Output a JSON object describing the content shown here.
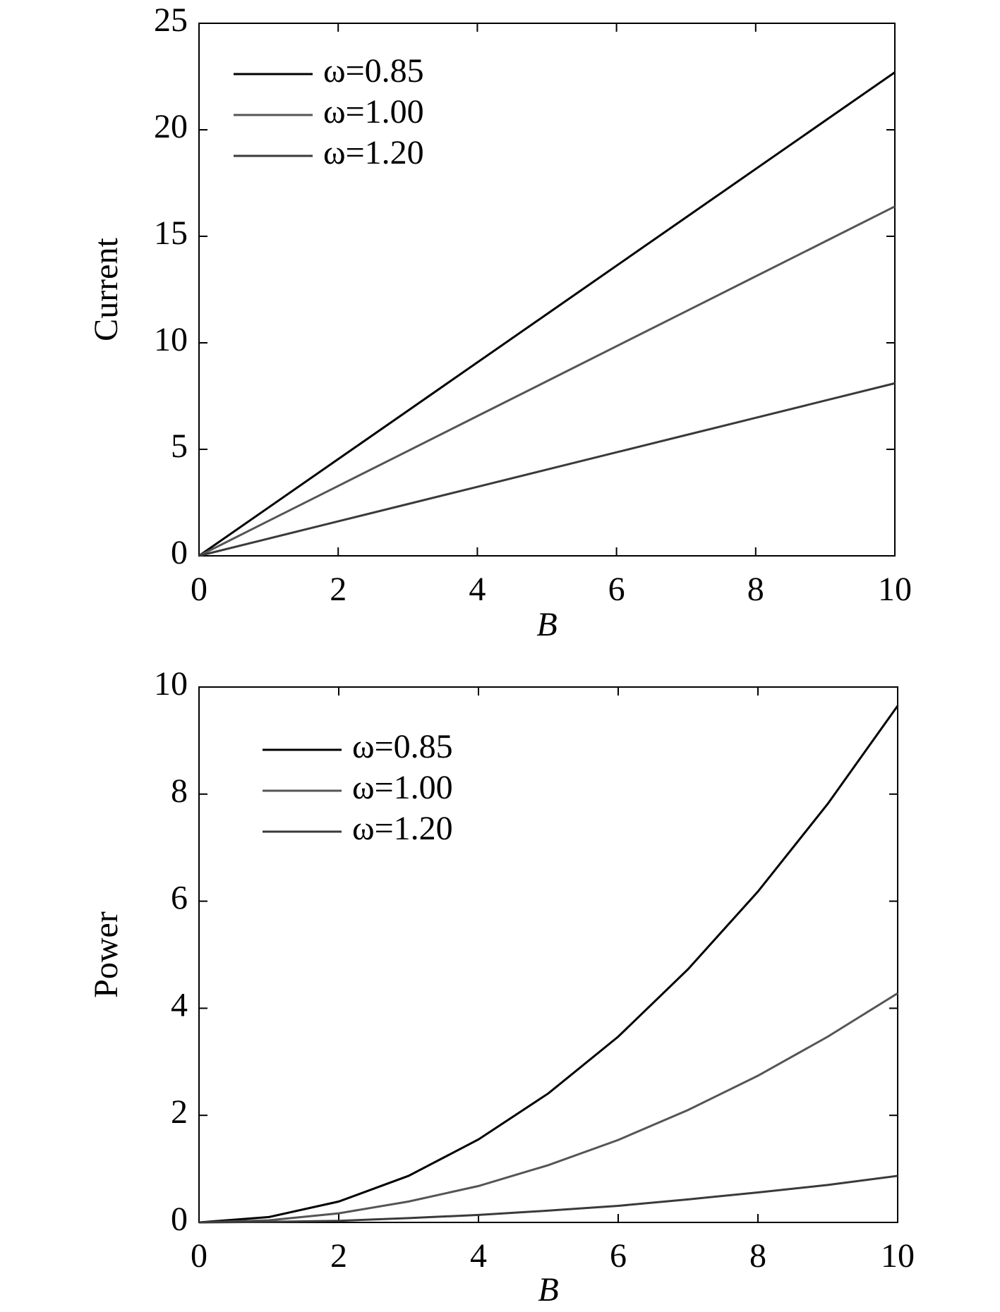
{
  "chart_data": [
    {
      "type": "line",
      "x_label": "B",
      "y_label": "Current",
      "x": [
        0,
        1,
        2,
        3,
        4,
        5,
        6,
        7,
        8,
        9,
        10
      ],
      "series": [
        {
          "name": "ω=0.85",
          "color": "#000000",
          "values": [
            0,
            2.27,
            4.54,
            6.81,
            9.08,
            11.35,
            13.62,
            15.89,
            18.16,
            20.43,
            22.7
          ]
        },
        {
          "name": "ω=1.00",
          "color": "#555555",
          "values": [
            0,
            1.64,
            3.28,
            4.92,
            6.56,
            8.2,
            9.84,
            11.48,
            13.12,
            14.76,
            16.4
          ]
        },
        {
          "name": "ω=1.20",
          "color": "#3a3a3a",
          "values": [
            0,
            0.81,
            1.62,
            2.43,
            3.24,
            4.05,
            4.86,
            5.67,
            6.48,
            7.29,
            8.1
          ]
        }
      ],
      "xlim": [
        0,
        10
      ],
      "ylim": [
        0,
        25
      ],
      "xticks": [
        0,
        2,
        4,
        6,
        8,
        10
      ],
      "yticks": [
        0,
        5,
        10,
        15,
        20,
        25
      ],
      "legend": "upper left"
    },
    {
      "type": "line",
      "x_label": "B",
      "y_label": "Power",
      "x": [
        0,
        1,
        2,
        3,
        4,
        5,
        6,
        7,
        8,
        9,
        10
      ],
      "series": [
        {
          "name": "ω=0.85",
          "color": "#000000",
          "values": [
            0,
            0.1,
            0.39,
            0.87,
            1.55,
            2.41,
            3.47,
            4.73,
            6.18,
            7.82,
            9.65
          ]
        },
        {
          "name": "ω=1.00",
          "color": "#555555",
          "values": [
            0,
            0.04,
            0.17,
            0.39,
            0.68,
            1.07,
            1.54,
            2.1,
            2.74,
            3.47,
            4.28
          ]
        },
        {
          "name": "ω=1.20",
          "color": "#3a3a3a",
          "values": [
            0,
            0.01,
            0.03,
            0.08,
            0.14,
            0.22,
            0.31,
            0.43,
            0.56,
            0.7,
            0.87
          ]
        }
      ],
      "xlim": [
        0,
        10
      ],
      "ylim": [
        0,
        10
      ],
      "xticks": [
        0,
        2,
        4,
        6,
        8,
        10
      ],
      "yticks": [
        0,
        2,
        4,
        6,
        8,
        10
      ],
      "legend": "upper left"
    }
  ]
}
